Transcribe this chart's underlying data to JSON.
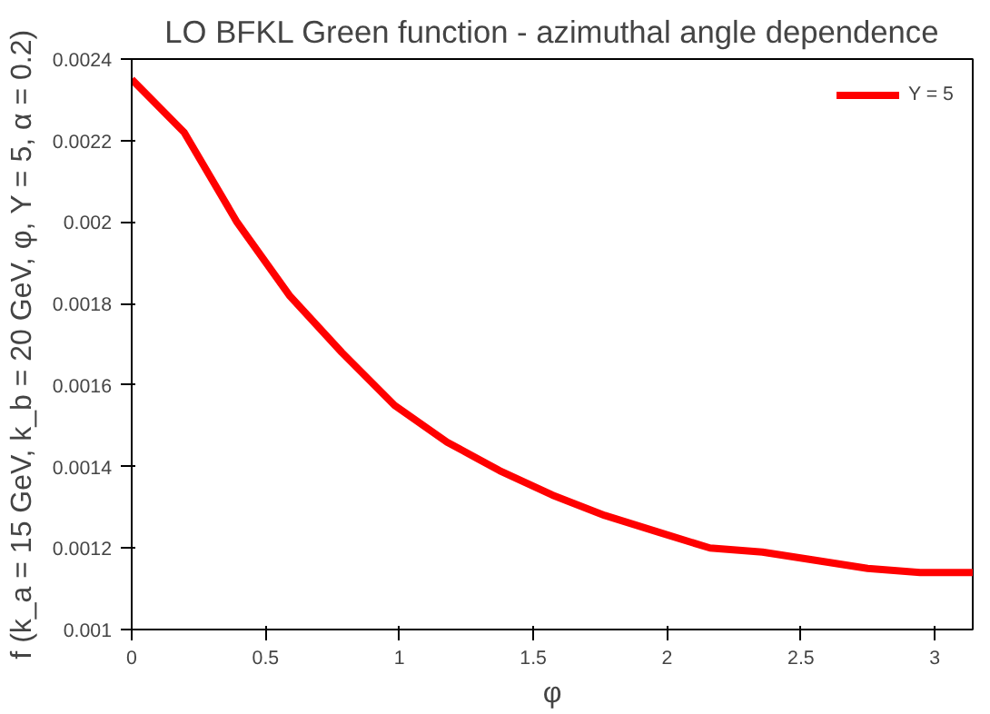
{
  "chart_data": {
    "type": "line",
    "title": "LO BFKL Green function - azimuthal angle dependence",
    "xlabel": "φ",
    "ylabel": "f (k_a = 15 GeV, k_b = 20 GeV, φ, Y = 5, α = 0.2)",
    "x": [
      0,
      0.196,
      0.393,
      0.589,
      0.785,
      0.982,
      1.178,
      1.374,
      1.571,
      1.767,
      1.963,
      2.16,
      2.356,
      2.553,
      2.749,
      2.945,
      3.1416
    ],
    "series": [
      {
        "name": "Y = 5",
        "color": "#ff0000",
        "values": [
          0.00235,
          0.00222,
          0.002,
          0.00182,
          0.00168,
          0.00155,
          0.00146,
          0.00139,
          0.00133,
          0.00128,
          0.00124,
          0.0012,
          0.00119,
          0.00117,
          0.00115,
          0.00114,
          0.00114
        ]
      }
    ],
    "xlim": [
      0,
      3.1416
    ],
    "ylim": [
      0.001,
      0.0024
    ],
    "xticks": [
      0,
      0.5,
      1,
      1.5,
      2,
      2.5,
      3
    ],
    "yticks": [
      0.001,
      0.0012,
      0.0014,
      0.0016,
      0.0018,
      0.002,
      0.0022,
      0.0024
    ],
    "grid": false,
    "legend": "top right",
    "marker": "none",
    "line_style": "solid"
  }
}
